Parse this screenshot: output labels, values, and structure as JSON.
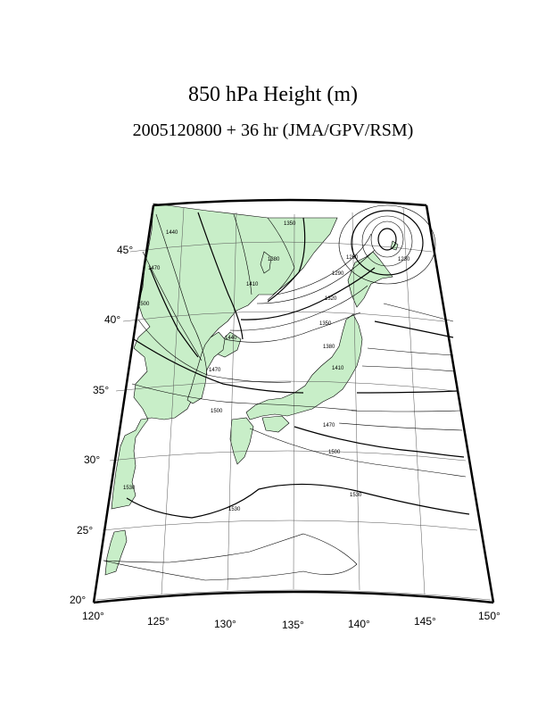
{
  "header": {
    "title": "850 hPa Height (m)",
    "subtitle": "2005120800 + 36 hr (JMA/GPV/RSM)"
  },
  "map": {
    "variable": "850 hPa geopotential height",
    "units": "m",
    "land_color": "#c8eec8",
    "lon_ticks": [
      "120°",
      "125°",
      "130°",
      "135°",
      "140°",
      "145°",
      "150°"
    ],
    "lat_ticks": [
      "20°",
      "25°",
      "30°",
      "35°",
      "40°",
      "45°"
    ],
    "contour_labels": [
      "1440",
      "1470",
      "1500",
      "1410",
      "1380",
      "1350",
      "1320",
      "1290",
      "1260",
      "1230",
      "1530",
      "1530",
      "1530",
      "1470",
      "1440",
      "1410",
      "1380",
      "1350",
      "1500",
      "1470",
      "1500"
    ]
  }
}
